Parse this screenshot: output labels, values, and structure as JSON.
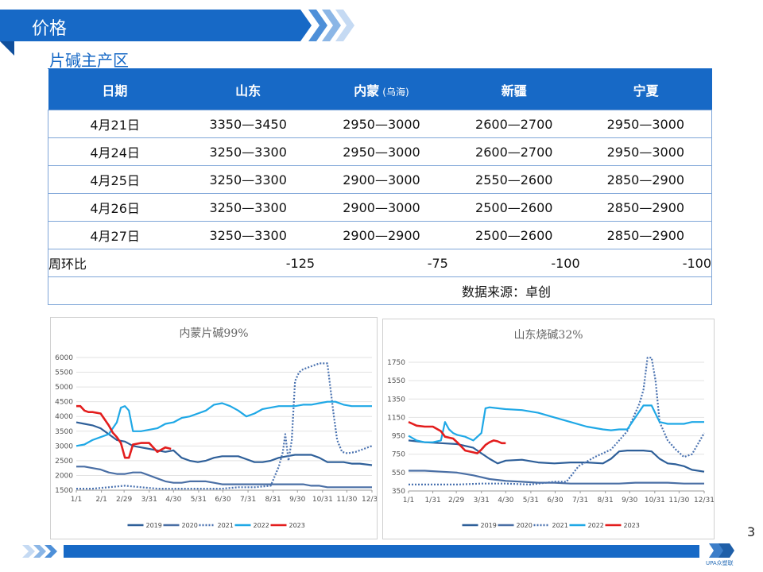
{
  "slide": {
    "title": "价格",
    "subtitle": "片碱主产区",
    "page_number": "3",
    "logo_text": "UPA众塑联"
  },
  "table": {
    "headers": [
      "日期",
      "山东",
      "内蒙",
      "新疆",
      "宁夏"
    ],
    "header_note": "(乌海)",
    "rows": [
      [
        "4月21日",
        "3350—3450",
        "2950—3000",
        "2600—2700",
        "2950—3000"
      ],
      [
        "4月24日",
        "3250—3300",
        "2950—3000",
        "2600—2700",
        "2950—3000"
      ],
      [
        "4月25日",
        "3250—3300",
        "2900—3000",
        "2550—2600",
        "2850—2900"
      ],
      [
        "4月26日",
        "3250—3300",
        "2900—3000",
        "2500—2600",
        "2850—2900"
      ],
      [
        "4月27日",
        "3250—3300",
        "2900—2900",
        "2500—2600",
        "2850—2900"
      ]
    ],
    "change_label": "周环比",
    "changes": [
      "-125",
      "-75",
      "-100",
      "-100"
    ],
    "source": "数据来源：卓创"
  },
  "chart_data": [
    {
      "type": "line",
      "title": "内蒙片碱99%",
      "ylim": [
        1500,
        6000
      ],
      "yticks": [
        1500,
        2000,
        2500,
        3000,
        3500,
        4000,
        4500,
        5000,
        5500,
        6000
      ],
      "xlim": [
        0,
        365
      ],
      "xtick_labels": [
        "1/1",
        "2/1",
        "2/29",
        "3/31",
        "4/30",
        "5/31",
        "6/30",
        "7/31",
        "8/31",
        "9/30",
        "10/31",
        "11/30",
        "12/31"
      ],
      "xtick_days": [
        0,
        31,
        59,
        90,
        120,
        151,
        181,
        212,
        243,
        273,
        304,
        334,
        365
      ],
      "grid": "horizontal",
      "legend": "bottom",
      "series": [
        {
          "name": "2019",
          "color": "#2e5f99",
          "dash": "solid",
          "x": [
            0,
            10,
            20,
            30,
            40,
            50,
            60,
            70,
            80,
            90,
            100,
            110,
            120,
            130,
            140,
            150,
            160,
            170,
            180,
            190,
            200,
            210,
            220,
            230,
            240,
            250,
            260,
            270,
            280,
            290,
            300,
            310,
            320,
            330,
            340,
            350,
            365
          ],
          "values": [
            3800,
            3750,
            3700,
            3600,
            3400,
            3200,
            3150,
            3000,
            2950,
            2900,
            2850,
            2800,
            2850,
            2600,
            2500,
            2450,
            2500,
            2600,
            2650,
            2650,
            2650,
            2550,
            2450,
            2450,
            2500,
            2600,
            2650,
            2700,
            2700,
            2700,
            2600,
            2450,
            2450,
            2450,
            2400,
            2400,
            2350
          ]
        },
        {
          "name": "2020",
          "color": "#4a6fa5",
          "dash": "solid",
          "x": [
            0,
            10,
            20,
            30,
            40,
            50,
            60,
            70,
            80,
            90,
            100,
            110,
            120,
            130,
            140,
            150,
            160,
            170,
            180,
            190,
            200,
            210,
            220,
            230,
            240,
            250,
            260,
            270,
            280,
            290,
            300,
            310,
            320,
            330,
            340,
            350,
            365
          ],
          "values": [
            2300,
            2300,
            2250,
            2200,
            2100,
            2050,
            2050,
            2100,
            2100,
            2000,
            1900,
            1800,
            1750,
            1750,
            1800,
            1800,
            1800,
            1750,
            1700,
            1700,
            1700,
            1700,
            1700,
            1700,
            1700,
            1700,
            1700,
            1700,
            1700,
            1650,
            1650,
            1600,
            1600,
            1600,
            1600,
            1600,
            1600
          ]
        },
        {
          "name": "2021",
          "color": "#4a72b0",
          "dash": "dotted",
          "x": [
            0,
            20,
            40,
            60,
            80,
            100,
            120,
            140,
            160,
            180,
            200,
            220,
            240,
            250,
            255,
            258,
            262,
            266,
            270,
            275,
            280,
            290,
            300,
            310,
            318,
            322,
            328,
            335,
            345,
            355,
            365
          ],
          "values": [
            1550,
            1550,
            1600,
            1650,
            1600,
            1550,
            1550,
            1550,
            1550,
            1550,
            1600,
            1600,
            1650,
            2300,
            2800,
            3400,
            2500,
            3200,
            5200,
            5500,
            5600,
            5700,
            5800,
            5800,
            4000,
            3200,
            2800,
            2750,
            2800,
            2900,
            3000
          ]
        },
        {
          "name": "2022",
          "color": "#1fa8e6",
          "dash": "solid",
          "x": [
            0,
            10,
            20,
            30,
            40,
            50,
            55,
            60,
            65,
            70,
            80,
            90,
            100,
            110,
            120,
            130,
            140,
            150,
            160,
            170,
            180,
            190,
            200,
            210,
            220,
            230,
            240,
            250,
            260,
            270,
            280,
            290,
            300,
            310,
            320,
            330,
            340,
            350,
            365
          ],
          "values": [
            3000,
            3050,
            3200,
            3300,
            3400,
            3800,
            4300,
            4350,
            4200,
            3500,
            3500,
            3550,
            3600,
            3750,
            3800,
            3950,
            4000,
            4100,
            4200,
            4400,
            4450,
            4350,
            4200,
            4000,
            4100,
            4250,
            4300,
            4350,
            4350,
            4350,
            4400,
            4400,
            4450,
            4500,
            4500,
            4400,
            4350,
            4350,
            4350
          ]
        },
        {
          "name": "2023",
          "color": "#e31d1d",
          "dash": "solid",
          "x": [
            0,
            5,
            10,
            15,
            20,
            30,
            40,
            45,
            50,
            55,
            60,
            65,
            70,
            80,
            90,
            100,
            110,
            117
          ],
          "values": [
            4350,
            4350,
            4200,
            4150,
            4150,
            4100,
            3700,
            3450,
            3300,
            3100,
            2600,
            2600,
            3050,
            3100,
            3100,
            2800,
            2950,
            2900
          ]
        }
      ]
    },
    {
      "type": "line",
      "title": "山东烧碱32%",
      "ylim": [
        350,
        1750
      ],
      "yticks": [
        350,
        550,
        750,
        950,
        1150,
        1350,
        1550,
        1750
      ],
      "xlim": [
        0,
        365
      ],
      "xtick_labels": [
        "1/1",
        "1/31",
        "2/29",
        "3/31",
        "4/30",
        "5/31",
        "6/30",
        "7/31",
        "8/31",
        "9/30",
        "10/31",
        "11/30",
        "12/31"
      ],
      "xtick_days": [
        0,
        30,
        59,
        90,
        120,
        151,
        181,
        212,
        243,
        273,
        304,
        334,
        365
      ],
      "grid": "horizontal",
      "legend": "bottom",
      "series": [
        {
          "name": "2019",
          "color": "#2e5f99",
          "dash": "solid",
          "x": [
            0,
            20,
            40,
            60,
            80,
            90,
            100,
            110,
            120,
            140,
            160,
            180,
            200,
            220,
            240,
            250,
            260,
            270,
            280,
            290,
            300,
            310,
            320,
            330,
            340,
            350,
            365
          ],
          "values": [
            900,
            880,
            870,
            860,
            820,
            760,
            700,
            650,
            680,
            690,
            660,
            650,
            660,
            660,
            650,
            700,
            780,
            790,
            790,
            790,
            780,
            700,
            650,
            640,
            620,
            580,
            560
          ]
        },
        {
          "name": "2020",
          "color": "#4a6fa5",
          "dash": "solid",
          "x": [
            0,
            20,
            40,
            60,
            80,
            100,
            120,
            140,
            160,
            180,
            200,
            220,
            240,
            260,
            280,
            300,
            320,
            340,
            365
          ],
          "values": [
            570,
            570,
            560,
            550,
            520,
            480,
            460,
            450,
            440,
            440,
            430,
            430,
            430,
            430,
            440,
            440,
            440,
            430,
            430
          ]
        },
        {
          "name": "2021",
          "color": "#4a72b0",
          "dash": "dotted",
          "x": [
            0,
            30,
            60,
            90,
            120,
            150,
            180,
            195,
            210,
            230,
            250,
            270,
            285,
            290,
            295,
            300,
            305,
            310,
            320,
            330,
            340,
            350,
            365
          ],
          "values": [
            420,
            420,
            420,
            430,
            430,
            420,
            450,
            450,
            620,
            720,
            800,
            1000,
            1300,
            1450,
            1800,
            1800,
            1550,
            1100,
            900,
            800,
            720,
            750,
            980
          ]
        },
        {
          "name": "2022",
          "color": "#1fa8e6",
          "dash": "solid",
          "x": [
            0,
            10,
            20,
            30,
            40,
            45,
            50,
            55,
            60,
            70,
            80,
            90,
            95,
            100,
            110,
            120,
            140,
            160,
            180,
            200,
            220,
            240,
            250,
            260,
            270,
            280,
            290,
            300,
            310,
            320,
            330,
            340,
            350,
            365
          ],
          "values": [
            950,
            900,
            880,
            880,
            900,
            1100,
            1020,
            980,
            960,
            940,
            900,
            980,
            1250,
            1260,
            1250,
            1240,
            1230,
            1200,
            1150,
            1100,
            1050,
            1020,
            1010,
            1020,
            1020,
            1150,
            1280,
            1280,
            1100,
            1080,
            1080,
            1080,
            1100,
            1100
          ]
        },
        {
          "name": "2023",
          "color": "#e31d1d",
          "dash": "solid",
          "x": [
            0,
            5,
            10,
            20,
            30,
            40,
            45,
            50,
            55,
            60,
            70,
            80,
            85,
            90,
            95,
            100,
            105,
            110,
            115,
            120
          ],
          "values": [
            1100,
            1080,
            1060,
            1050,
            1050,
            1000,
            940,
            930,
            920,
            880,
            790,
            770,
            760,
            800,
            850,
            880,
            900,
            890,
            870,
            870
          ]
        }
      ]
    }
  ]
}
